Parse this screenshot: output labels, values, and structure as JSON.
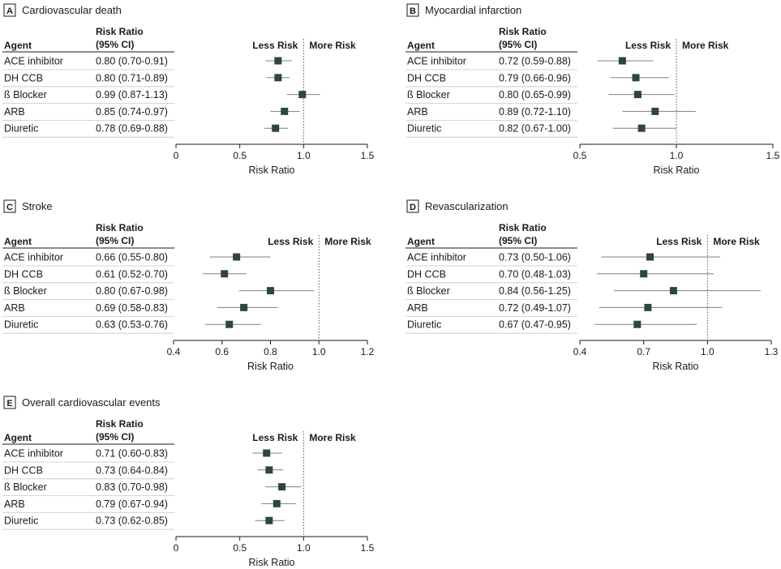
{
  "header": {
    "agent": "Agent",
    "rr_line1": "Risk Ratio",
    "rr_line2": "(95% CI)"
  },
  "labels": {
    "less": "Less Risk",
    "more": "More Risk",
    "axis": "Risk Ratio"
  },
  "colors": {
    "marker": "#2e4447",
    "line": "#808080",
    "text": "#1a1a1a"
  },
  "agents": [
    "ACE inhibitor",
    "DH CCB",
    "ß Blocker",
    "ARB",
    "Diuretic"
  ],
  "chart_data": [
    {
      "type": "forest",
      "letter": "A",
      "title": "Cardiovascular death",
      "xlim": [
        0,
        1.5
      ],
      "ticks": [
        "0",
        "0.5",
        "1.0",
        "1.5"
      ],
      "tick_values": [
        0,
        0.5,
        1.0,
        1.5
      ],
      "reference": 1.0,
      "ci_text": [
        "0.80 (0.70-0.91)",
        "0.80 (0.71-0.89)",
        "0.99 (0.87-1.13)",
        "0.85 (0.74-0.97)",
        "0.78 (0.69-0.88)"
      ],
      "estimates": [
        [
          0.8,
          0.7,
          0.91
        ],
        [
          0.8,
          0.71,
          0.89
        ],
        [
          0.99,
          0.87,
          1.13
        ],
        [
          0.85,
          0.74,
          0.97
        ],
        [
          0.78,
          0.69,
          0.88
        ]
      ]
    },
    {
      "type": "forest",
      "letter": "B",
      "title": "Myocardial infarction",
      "xlim": [
        0.5,
        1.5
      ],
      "ticks": [
        "0.5",
        "1.0",
        "1.5"
      ],
      "tick_values": [
        0.5,
        1.0,
        1.5
      ],
      "reference": 1.0,
      "ci_text": [
        "0.72 (0.59-0.88)",
        "0.79 (0.66-0.96)",
        "0.80 (0.65-0.99)",
        "0.89 (0.72-1.10)",
        "0.82 (0.67-1.00)"
      ],
      "estimates": [
        [
          0.72,
          0.59,
          0.88
        ],
        [
          0.79,
          0.66,
          0.96
        ],
        [
          0.8,
          0.65,
          0.99
        ],
        [
          0.89,
          0.72,
          1.1
        ],
        [
          0.82,
          0.67,
          1.0
        ]
      ]
    },
    {
      "type": "forest",
      "letter": "C",
      "title": "Stroke",
      "xlim": [
        0.4,
        1.2
      ],
      "ticks": [
        "0.4",
        "0.6",
        "0.8",
        "1.0",
        "1.2"
      ],
      "tick_values": [
        0.4,
        0.6,
        0.8,
        1.0,
        1.2
      ],
      "reference": 1.0,
      "ci_text": [
        "0.66 (0.55-0.80)",
        "0.61 (0.52-0.70)",
        "0.80 (0.67-0.98)",
        "0.69 (0.58-0.83)",
        "0.63 (0.53-0.76)"
      ],
      "estimates": [
        [
          0.66,
          0.55,
          0.8
        ],
        [
          0.61,
          0.52,
          0.7
        ],
        [
          0.8,
          0.67,
          0.98
        ],
        [
          0.69,
          0.58,
          0.83
        ],
        [
          0.63,
          0.53,
          0.76
        ]
      ]
    },
    {
      "type": "forest",
      "letter": "D",
      "title": "Revascularization",
      "xlim": [
        0.4,
        1.3
      ],
      "ticks": [
        "0.4",
        "0.7",
        "1.0",
        "1.3"
      ],
      "tick_values": [
        0.4,
        0.7,
        1.0,
        1.3
      ],
      "reference": 1.0,
      "ci_text": [
        "0.73 (0.50-1.06)",
        "0.70 (0.48-1.03)",
        "0.84 (0.56-1.25)",
        "0.72 (0.49-1.07)",
        "0.67 (0.47-0.95)"
      ],
      "estimates": [
        [
          0.73,
          0.5,
          1.06
        ],
        [
          0.7,
          0.48,
          1.03
        ],
        [
          0.84,
          0.56,
          1.25
        ],
        [
          0.72,
          0.49,
          1.07
        ],
        [
          0.67,
          0.47,
          0.95
        ]
      ]
    },
    {
      "type": "forest",
      "letter": "E",
      "title": "Overall cardiovascular events",
      "xlim": [
        0,
        1.5
      ],
      "ticks": [
        "0",
        "0.5",
        "1.0",
        "1.5"
      ],
      "tick_values": [
        0,
        0.5,
        1.0,
        1.5
      ],
      "reference": 1.0,
      "ci_text": [
        "0.71 (0.60-0.83)",
        "0.73 (0.64-0.84)",
        "0.83 (0.70-0.98)",
        "0.79 (0.67-0.94)",
        "0.73 (0.62-0.85)"
      ],
      "estimates": [
        [
          0.71,
          0.6,
          0.83
        ],
        [
          0.73,
          0.64,
          0.84
        ],
        [
          0.83,
          0.7,
          0.98
        ],
        [
          0.79,
          0.67,
          0.94
        ],
        [
          0.73,
          0.62,
          0.85
        ]
      ]
    }
  ]
}
